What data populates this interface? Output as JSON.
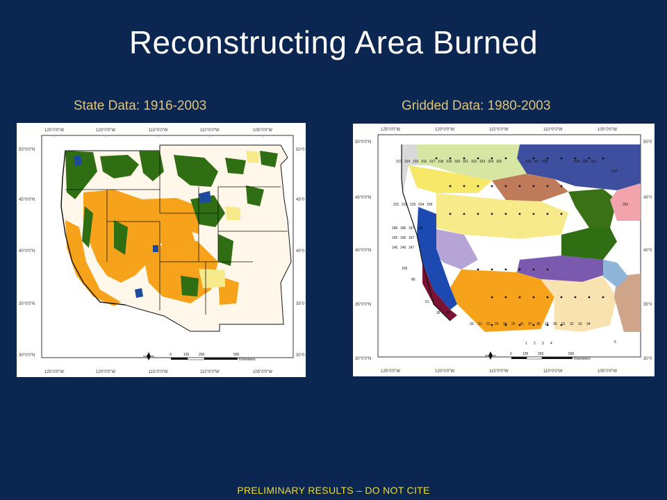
{
  "slide": {
    "title": "Reconstructing Area Burned",
    "footer": "PRELIMINARY RESULTS – DO NOT CITE"
  },
  "left_map": {
    "caption": "State Data: 1916-2003",
    "lon_labels": [
      "125°0'0\"W",
      "120°0'0\"W",
      "115°0'0\"W",
      "110°0'0\"W",
      "105°0'0\"W"
    ],
    "lat_labels": [
      "50°0'0\"N",
      "45°0'0\"N",
      "40°0'0\"N",
      "35°0'0\"N",
      "30°0'0\"N"
    ],
    "lat_labels_right": [
      "50°0",
      "45°0",
      "40°0",
      "35°0",
      "30°0"
    ],
    "scale_ticks": [
      "0",
      "125",
      "250",
      "500"
    ],
    "scale_unit": "Kilometers"
  },
  "right_map": {
    "caption": "Gridded Data: 1980-2003",
    "lon_labels": [
      "125°0'0\"W",
      "120°0'0\"W",
      "115°0'0\"W",
      "110°0'0\"W",
      "105°0'0\"W"
    ],
    "lat_labels": [
      "50°0'0\"N",
      "45°0'0\"N",
      "40°0'0\"N",
      "35°0'0\"N",
      "30°0'0\"N"
    ],
    "lat_labels_right": [
      "50°0",
      "45°0",
      "40°0",
      "35°0",
      "30°0"
    ],
    "scale_ticks": [
      "0",
      "125",
      "250",
      "500"
    ],
    "scale_unit": "Kilometers",
    "cell_ids_visible": [
      "313",
      "314",
      "315",
      "316",
      "317",
      "318",
      "319",
      "320",
      "321",
      "322",
      "323",
      "324",
      "325",
      "326",
      "327",
      "328",
      "329",
      "330",
      "331",
      "312",
      "231",
      "232",
      "233",
      "234",
      "235",
      "252",
      "185",
      "186",
      "187",
      "188",
      "165",
      "166",
      "167",
      "145",
      "146",
      "147",
      "106",
      "86",
      "51",
      "35",
      "36",
      "1",
      "2",
      "3",
      "4",
      "5",
      "20",
      "21",
      "22",
      "23",
      "24",
      "25",
      "26",
      "27",
      "28",
      "29",
      "30",
      "31",
      "32",
      "33",
      "34"
    ]
  },
  "colors": {
    "background": "#0b2650",
    "caption": "#dfc57a",
    "footer": "#f0dc2c",
    "forest_green": "#2f6e12",
    "orange": "#f6a21a",
    "light_yellow": "#f7ea8a",
    "blue": "#1d4a9c",
    "purple": "#6b4ba8",
    "pink": "#f2a3ac",
    "tan": "#caa07b",
    "maroon": "#7b1233"
  }
}
